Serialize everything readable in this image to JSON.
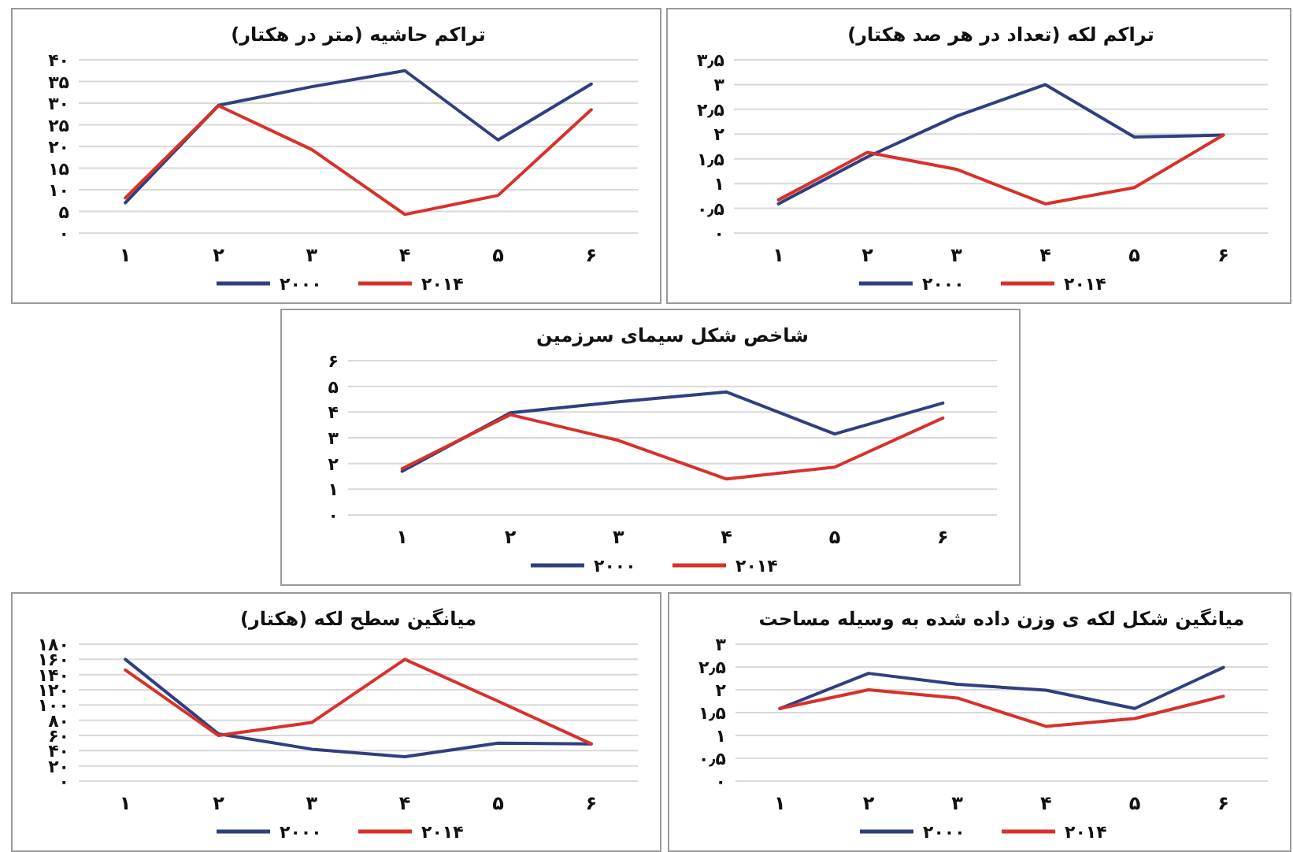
{
  "chart_data": [
    {
      "type": "line",
      "title": "تراکم حاشیه (متر در هکتار)",
      "categories": [
        "۱",
        "۲",
        "۳",
        "۴",
        "۵",
        "۶"
      ],
      "grid": "y",
      "legend": "bottom",
      "ylim": [
        0,
        40
      ],
      "yticks": [
        {
          "value": 0,
          "label": "۰"
        },
        {
          "value": 5,
          "label": "۵"
        },
        {
          "value": 10,
          "label": "۱۰"
        },
        {
          "value": 15,
          "label": "۱۵"
        },
        {
          "value": 20,
          "label": "۲۰"
        },
        {
          "value": 25,
          "label": "۲۵"
        },
        {
          "value": 30,
          "label": "۳۰"
        },
        {
          "value": 35,
          "label": "۳۵"
        },
        {
          "value": 40,
          "label": "۴۰"
        }
      ],
      "series": [
        {
          "name": "۲۰۰۰",
          "color": "#2f3f7f",
          "values": [
            7.0,
            29.5,
            33.8,
            37.5,
            21.5,
            34.4
          ]
        },
        {
          "name": "۲۰۱۴",
          "color": "#d7312c",
          "values": [
            8.1,
            29.4,
            19.3,
            4.3,
            8.7,
            28.5
          ]
        }
      ]
    },
    {
      "type": "line",
      "title": "تراکم لکه (تعداد در هر صد هکتار)",
      "categories": [
        "۱",
        "۲",
        "۳",
        "۴",
        "۵",
        "۶"
      ],
      "grid": "y",
      "legend": "bottom",
      "ylim": [
        0,
        3.5
      ],
      "yticks": [
        {
          "value": 0,
          "label": "۰"
        },
        {
          "value": 0.5,
          "label": "۰٫۵"
        },
        {
          "value": 1,
          "label": "۱"
        },
        {
          "value": 1.5,
          "label": "۱٫۵"
        },
        {
          "value": 2,
          "label": "۲"
        },
        {
          "value": 2.5,
          "label": "۲٫۵"
        },
        {
          "value": 3,
          "label": "۳"
        },
        {
          "value": 3.5,
          "label": "۳٫۵"
        }
      ],
      "series": [
        {
          "name": "۲۰۰۰",
          "color": "#2f3f7f",
          "values": [
            0.59,
            1.54,
            2.36,
            3.0,
            1.94,
            1.98
          ]
        },
        {
          "name": "۲۰۱۴",
          "color": "#d7312c",
          "values": [
            0.67,
            1.63,
            1.29,
            0.59,
            0.92,
            1.98
          ]
        }
      ]
    },
    {
      "type": "line",
      "title": "شاخص شکل سیمای سرزمین",
      "categories": [
        "۱",
        "۲",
        "۳",
        "۴",
        "۵",
        "۶"
      ],
      "grid": "y",
      "legend": "bottom",
      "ylim": [
        0,
        6
      ],
      "yticks": [
        {
          "value": 0,
          "label": "۰"
        },
        {
          "value": 1,
          "label": "۱"
        },
        {
          "value": 2,
          "label": "۲"
        },
        {
          "value": 3,
          "label": "۳"
        },
        {
          "value": 4,
          "label": "۴"
        },
        {
          "value": 5,
          "label": "۵"
        },
        {
          "value": 6,
          "label": "۶"
        }
      ],
      "series": [
        {
          "name": "۲۰۰۰",
          "color": "#2f3f7f",
          "values": [
            1.7,
            3.97,
            4.4,
            4.78,
            3.15,
            4.35
          ]
        },
        {
          "name": "۲۰۱۴",
          "color": "#d7312c",
          "values": [
            1.8,
            3.9,
            2.9,
            1.4,
            1.86,
            3.77
          ]
        }
      ]
    },
    {
      "type": "line",
      "title": "میانگین سطح لکه (هکتار)",
      "categories": [
        "۱",
        "۲",
        "۳",
        "۴",
        "۵",
        "۶"
      ],
      "grid": "y",
      "legend": "bottom",
      "ylim": [
        0,
        180
      ],
      "yticks": [
        {
          "value": 0,
          "label": "۰"
        },
        {
          "value": 20,
          "label": "۲۰"
        },
        {
          "value": 40,
          "label": "۴۰"
        },
        {
          "value": 60,
          "label": "۶۰"
        },
        {
          "value": 80,
          "label": "۸۰"
        },
        {
          "value": 100,
          "label": "۱۰۰"
        },
        {
          "value": 120,
          "label": "۱۲۰"
        },
        {
          "value": 140,
          "label": "۱۴۰"
        },
        {
          "value": 160,
          "label": "۱۶۰"
        },
        {
          "value": 180,
          "label": "۱۸۰"
        }
      ],
      "series": [
        {
          "name": "۲۰۰۰",
          "color": "#2f3f7f",
          "values": [
            160,
            62,
            42,
            32,
            50,
            49
          ]
        },
        {
          "name": "۲۰۱۴",
          "color": "#d7312c",
          "values": [
            146,
            60,
            77,
            160,
            105,
            49
          ]
        }
      ]
    },
    {
      "type": "line",
      "title": "میانگین شکل لکه ی وزن داده شده به وسیله مساحت",
      "categories": [
        "۱",
        "۲",
        "۳",
        "۴",
        "۵",
        "۶"
      ],
      "grid": "y",
      "legend": "bottom",
      "ylim": [
        0,
        3
      ],
      "yticks": [
        {
          "value": 0,
          "label": "۰"
        },
        {
          "value": 0.5,
          "label": "۰٫۵"
        },
        {
          "value": 1,
          "label": "۱"
        },
        {
          "value": 1.5,
          "label": "۱٫۵"
        },
        {
          "value": 2,
          "label": "۲"
        },
        {
          "value": 2.5,
          "label": "۲٫۵"
        },
        {
          "value": 3,
          "label": "۳"
        }
      ],
      "series": [
        {
          "name": "۲۰۰۰",
          "color": "#2f3f7f",
          "values": [
            1.59,
            2.36,
            2.12,
            1.99,
            1.59,
            2.49
          ]
        },
        {
          "name": "۲۰۱۴",
          "color": "#d7312c",
          "values": [
            1.59,
            2.0,
            1.82,
            1.2,
            1.37,
            1.86
          ]
        }
      ]
    }
  ]
}
